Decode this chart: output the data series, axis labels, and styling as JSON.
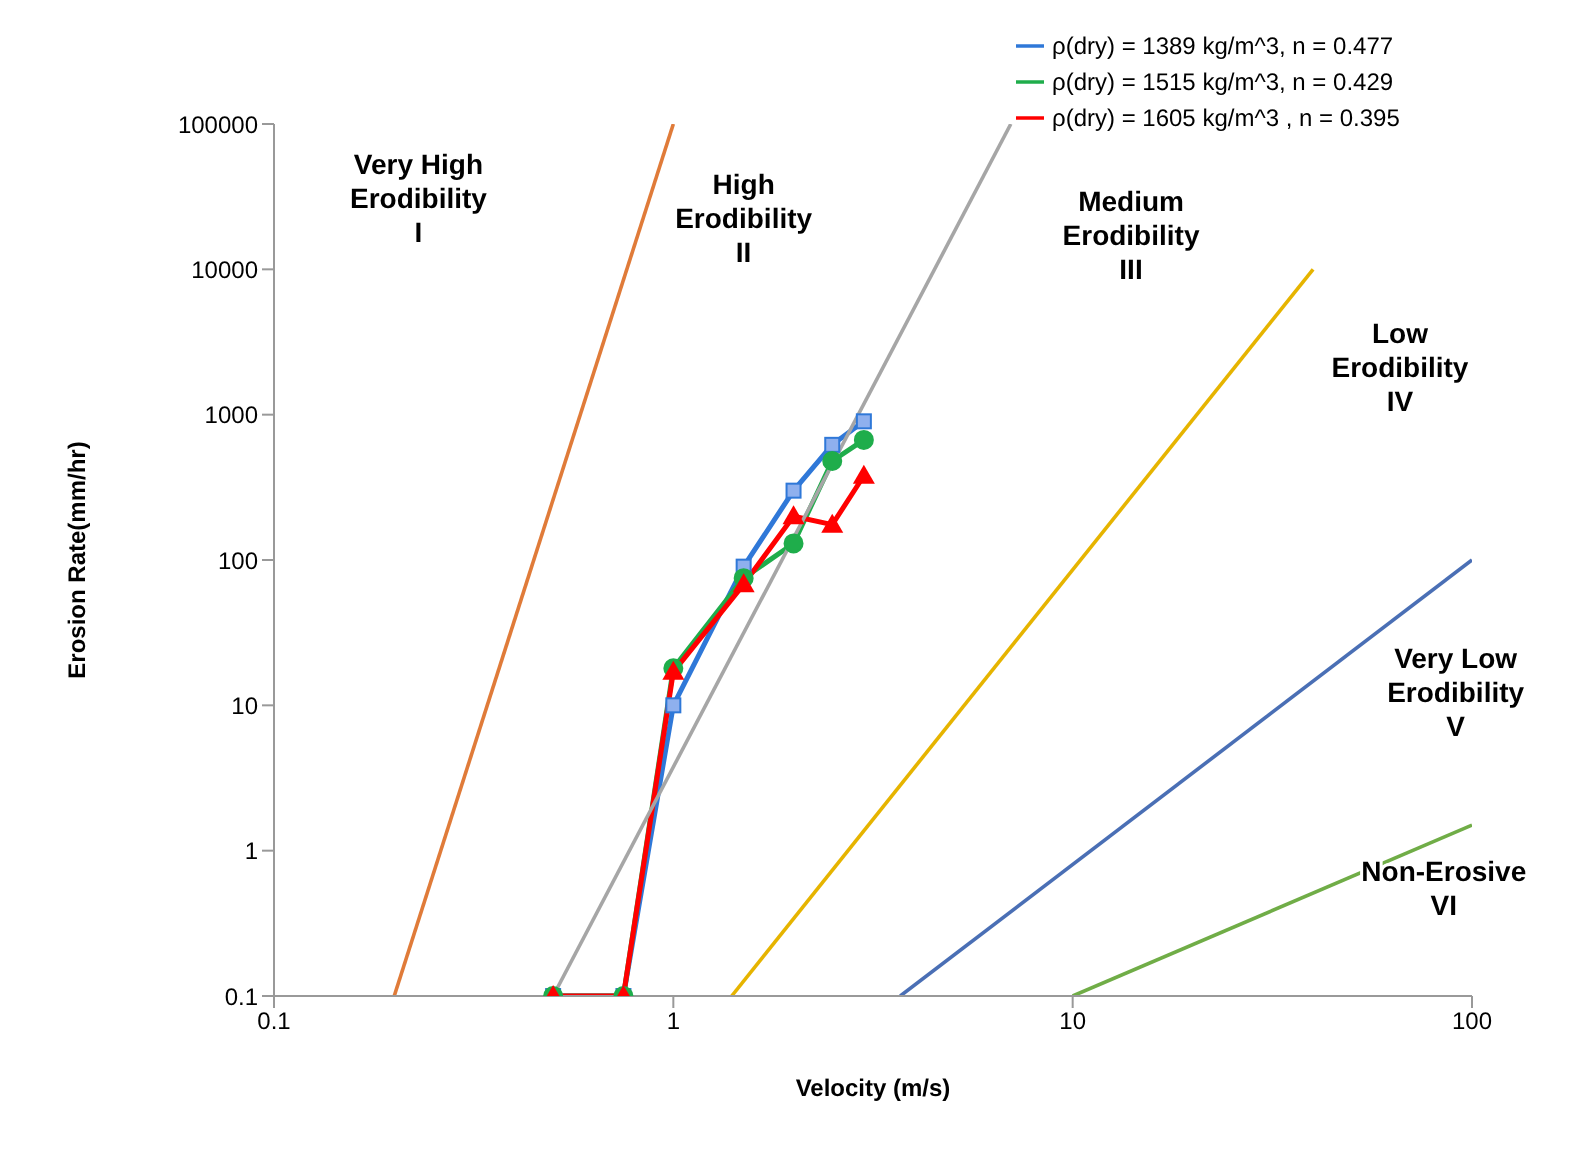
{
  "chart_data": {
    "type": "line",
    "xlabel": "Velocity (m/s)",
    "ylabel": "Erosion Rate(mm/hr)",
    "log": "xy",
    "xlim": [
      0.1,
      100
    ],
    "xticks": [
      0.1,
      1,
      10,
      100
    ],
    "ylim": [
      0.1,
      100000
    ],
    "yticks": [
      0.1,
      1,
      10,
      100,
      1000,
      10000,
      100000
    ],
    "grid": false,
    "legend": "top right",
    "series": [
      {
        "name": "ρ(dry) = 1389 kg/m^3, n = 0.477",
        "color": "#2f78d8",
        "marker": "square",
        "x": [
          0.5,
          0.75,
          1,
          1.5,
          2,
          2.5,
          3
        ],
        "values": [
          0.1,
          0.1,
          10,
          90,
          300,
          620,
          900
        ]
      },
      {
        "name": "ρ(dry) = 1515 kg/m^3, n = 0.429",
        "color": "#1fad4b",
        "marker": "circle",
        "x": [
          0.5,
          0.75,
          1,
          1.5,
          2,
          2.5,
          3
        ],
        "values": [
          0.1,
          0.1,
          18,
          75,
          130,
          480,
          670
        ]
      },
      {
        "name": "ρ(dry) = 1605 kg/m^3 , n = 0.395",
        "color": "#ff0000",
        "marker": "triangle",
        "x": [
          0.5,
          0.75,
          1,
          1.5,
          2,
          2.5,
          3
        ],
        "values": [
          0.1,
          0.1,
          17,
          68,
          200,
          175,
          380
        ]
      },
      {
        "color": "#e07b39",
        "marker": "none",
        "x": [
          0.2,
          1
        ],
        "values": [
          0.1,
          100000
        ]
      },
      {
        "color": "#a6a6a6",
        "marker": "none",
        "x": [
          0.5,
          7
        ],
        "values": [
          0.1,
          100000
        ]
      },
      {
        "color": "#e6b400",
        "marker": "none",
        "x": [
          1.4,
          40
        ],
        "values": [
          0.1,
          10000
        ]
      },
      {
        "color": "#4a6fb5",
        "marker": "none",
        "x": [
          3.7,
          100
        ],
        "values": [
          0.1,
          100
        ]
      },
      {
        "color": "#70ad47",
        "marker": "none",
        "x": [
          10,
          100
        ],
        "values": [
          0.1,
          1.5
        ]
      }
    ],
    "annotations": [
      "Very High\nErodibility\nI",
      "High\nErodibility\nII",
      "Medium\nErodibility\nIII",
      "Low\nErodibility\nIV",
      "Very Low\nErodibility\nV",
      "Non-Erosive\nVI"
    ]
  }
}
